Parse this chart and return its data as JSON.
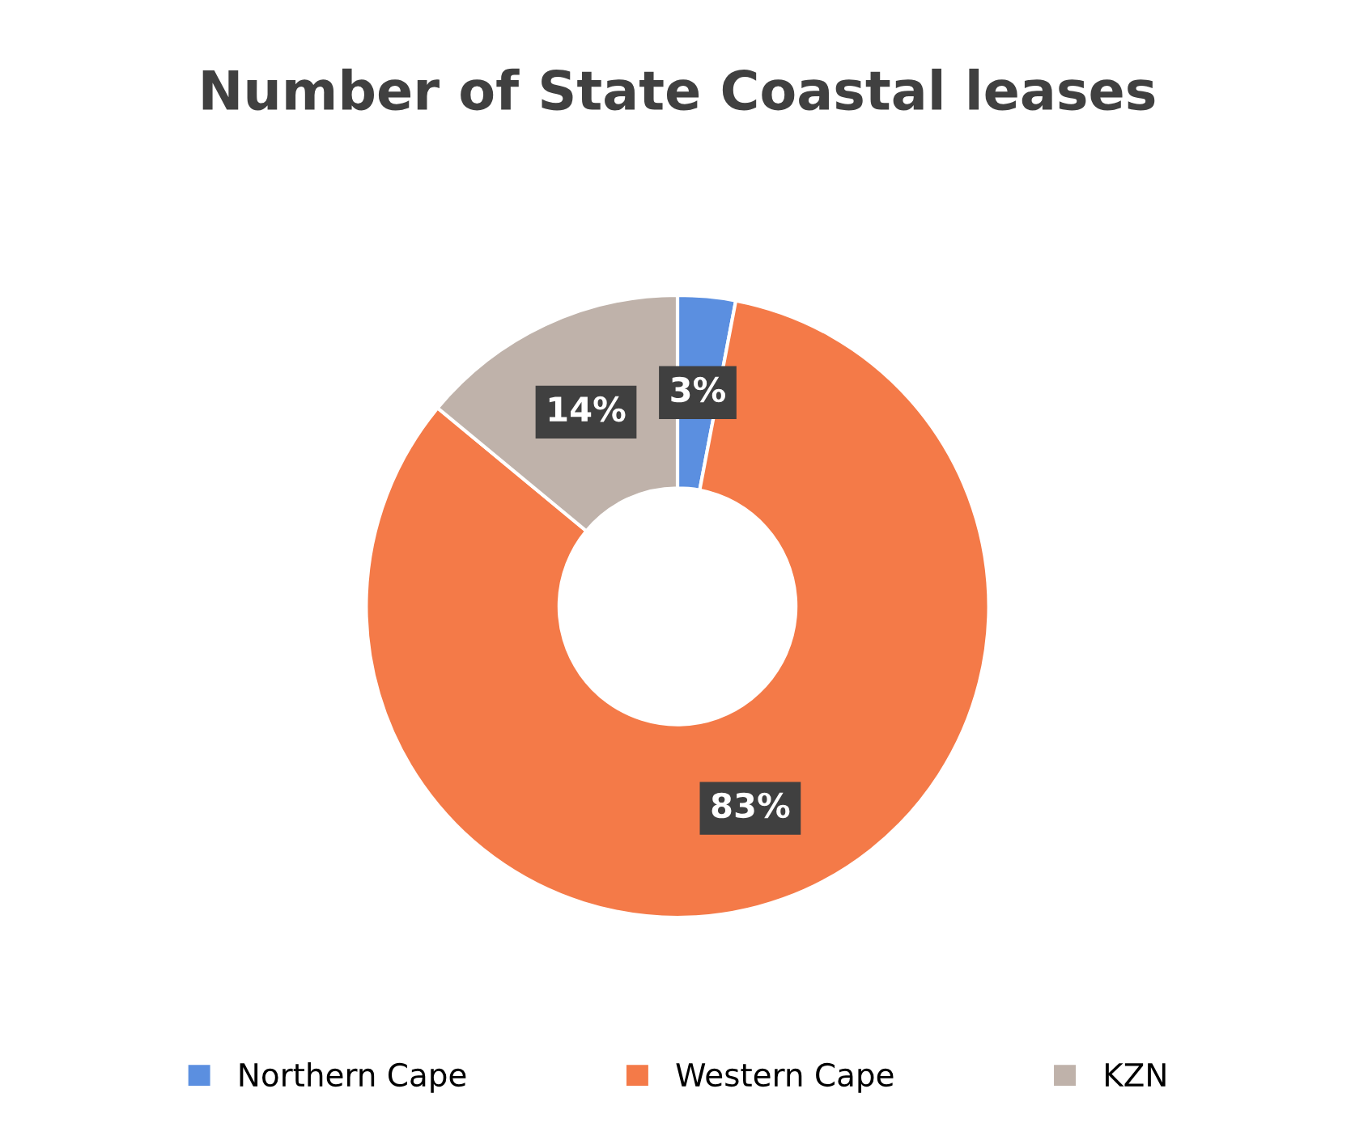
{
  "chart_data": {
    "type": "donut",
    "title": "Number of State Coastal leases",
    "categories": [
      "Northern Cape",
      "Western Cape",
      "KZN"
    ],
    "values": [
      3,
      83,
      14
    ],
    "colors": [
      "#5b8fe0",
      "#f47a48",
      "#bfb2aa"
    ],
    "value_labels": [
      "3%",
      "83%",
      "14%"
    ],
    "legend": "bottom"
  }
}
